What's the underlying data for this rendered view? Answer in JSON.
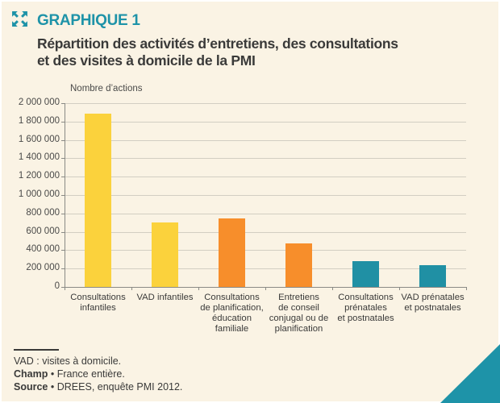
{
  "header": {
    "kicker": "GRAPHIQUE 1",
    "title_line1": "Répartition des activités d’entretiens, des consultations",
    "title_line2": "et des visites à domicile de la PMI"
  },
  "chart_data": {
    "type": "bar",
    "title": "Répartition des activités d’entretiens, des consultations et des visites à domicile de la PMI",
    "ylabel": "Nombre d’actions",
    "xlabel": "",
    "ylim": [
      0,
      2000000
    ],
    "ytick_step": 200000,
    "grid": true,
    "legend": "none",
    "categories": [
      "Consultations\ninfantiles",
      "VAD infantiles",
      "Consultations\nde planification,\néducation\nfamiliale",
      "Entretiens\nde conseil\nconjugal ou de\nplanification",
      "Consultations\nprénatales\net postnatales",
      "VAD prénatales\net postnatales"
    ],
    "values": [
      1890000,
      700000,
      750000,
      470000,
      280000,
      240000
    ],
    "bar_colors": [
      "#fbd23c",
      "#fbd23c",
      "#f78e2b",
      "#f78e2b",
      "#2090a4",
      "#2090a4"
    ]
  },
  "footer": {
    "note": "VAD : visites à domicile.",
    "champ_label": "Champ",
    "separator": "•",
    "champ_text": "France entière.",
    "source_label": "Source",
    "source_text": "DREES, enquête PMI 2012."
  },
  "colors": {
    "accent_teal": "#1e93a8",
    "bar_yellow": "#fbd23c",
    "bar_orange": "#f78e2b",
    "bar_teal": "#2090a4",
    "background_cream": "#faf3e4",
    "text_dark": "#3a3a39",
    "gridline": "#d2cec2"
  },
  "icons": {
    "expand": "expand-arrows-icon"
  }
}
